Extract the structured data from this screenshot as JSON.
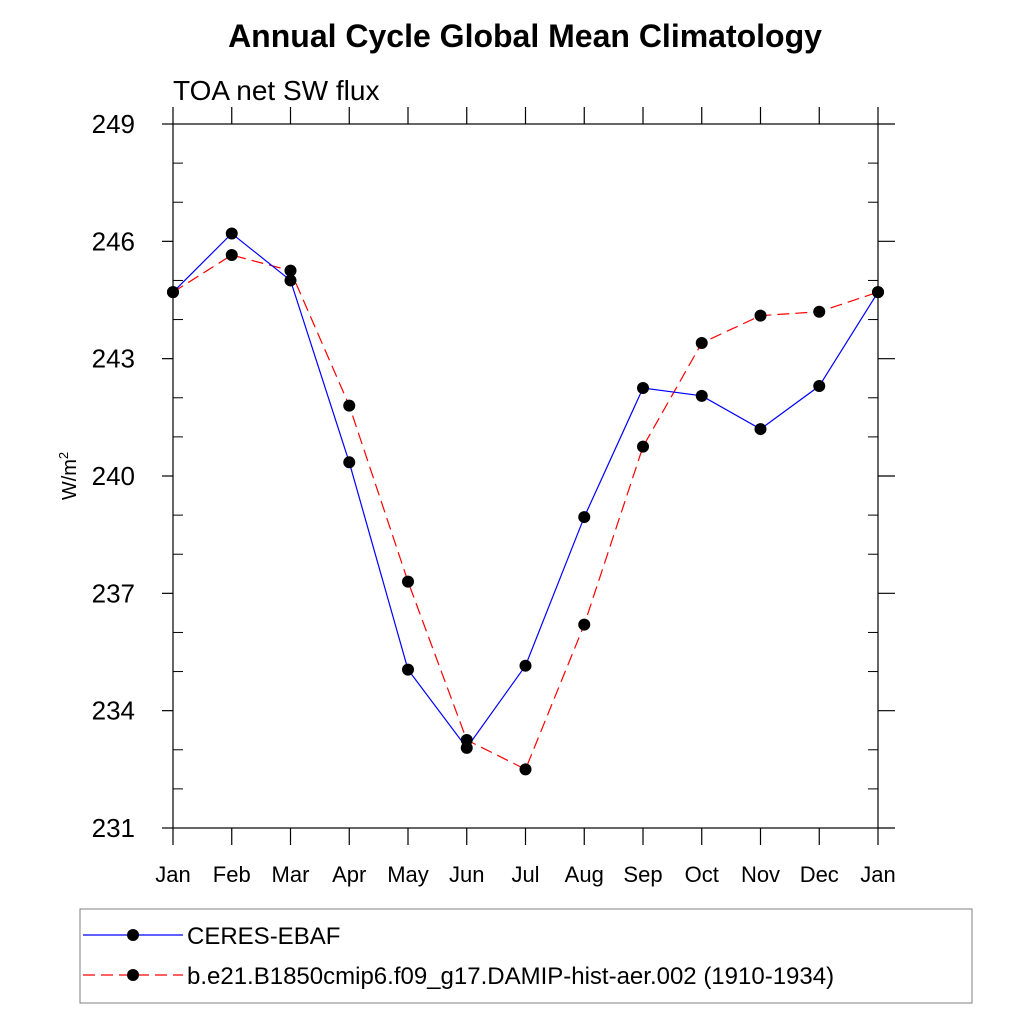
{
  "chart_data": {
    "type": "line",
    "title": "Annual Cycle Global Mean Climatology",
    "subtitle": "TOA net SW flux",
    "ylabel": "W/m",
    "ylabel_superscript": "2",
    "xlabel": "",
    "categories": [
      "Jan",
      "Feb",
      "Mar",
      "Apr",
      "May",
      "Jun",
      "Jul",
      "Aug",
      "Sep",
      "Oct",
      "Nov",
      "Dec",
      "Jan"
    ],
    "ylim": [
      231,
      249
    ],
    "yticks": [
      "231",
      "234",
      "237",
      "240",
      "243",
      "246",
      "249"
    ],
    "grid": false,
    "legend_position": "bottom",
    "series": [
      {
        "name": "CERES-EBAF",
        "color": "#0000ff",
        "dash": "solid",
        "values": [
          244.7,
          246.2,
          245.0,
          240.35,
          235.05,
          233.05,
          235.15,
          238.95,
          242.25,
          242.05,
          241.2,
          242.3,
          244.7
        ]
      },
      {
        "name": "b.e21.B1850cmip6.f09_g17.DAMIP-hist-aer.002 (1910-1934)",
        "color": "#ff0000",
        "dash": "dashed",
        "values": [
          244.7,
          245.65,
          245.25,
          241.8,
          237.3,
          233.25,
          232.5,
          236.2,
          240.75,
          243.4,
          244.1,
          244.2,
          244.7
        ]
      }
    ]
  }
}
